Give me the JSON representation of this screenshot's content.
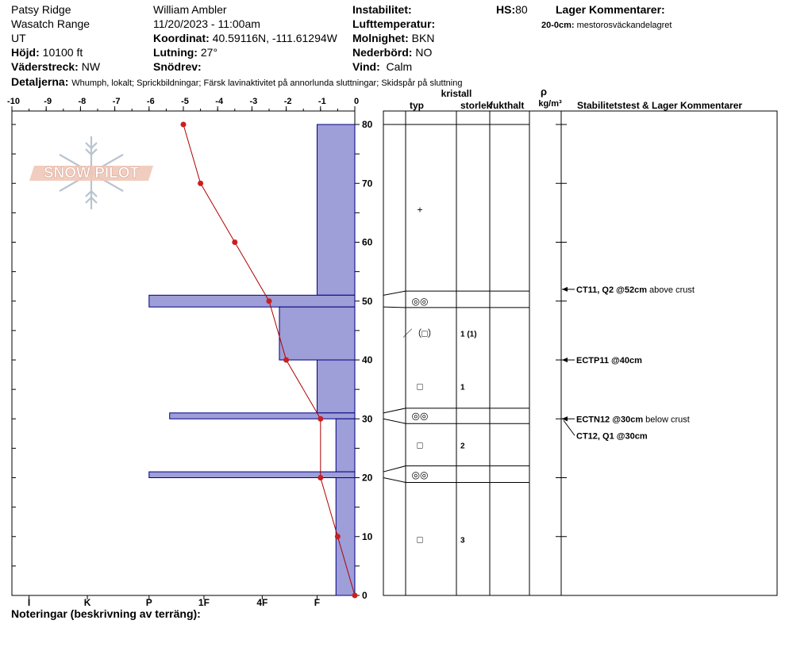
{
  "header": {
    "location": "Patsy Ridge",
    "range": "Wasatch Range",
    "state": "UT",
    "elevation_label": "Höjd:",
    "elevation": "10100 ft",
    "aspect_label": "Väderstreck:",
    "aspect": "NW",
    "observer": "William Ambler",
    "datetime": "11/20/2023 - 11:00am",
    "coord_label": "Koordinat:",
    "coord": "40.59116N, -111.61294W",
    "slope_label": "Lutning:",
    "slope": "27°",
    "snowdrift_label": "Snödrev:",
    "snowdrift": "",
    "instability_label": "Instabilitet:",
    "instability": "",
    "airtemp_label": "Lufttemperatur:",
    "airtemp": "",
    "sky_label": "Molnighet:",
    "sky": "BKN",
    "precip_label": "Nederbörd:",
    "precip": "NO",
    "wind_label": "Vind:",
    "wind": "Calm",
    "hs_label": "HS:",
    "hs": "80",
    "layer_comments_label": "Lager Kommentarer:",
    "layer_comment_depth": "20-0cm:",
    "layer_comment_text": "mestorosväckandelagret",
    "details_label": "Detaljerna:",
    "details": "Whumph, lokalt;  Sprickbildningar;  Färsk lavinaktivitet på annorlunda sluttningar;  Skidspår på sluttning"
  },
  "logo": {
    "text": "SNOW PILOT"
  },
  "columns": {
    "typ": "typ",
    "kristall": "kristall",
    "storlek": "storlek",
    "fukthalt": "fukthalt",
    "rho": "ρ",
    "density_unit": "kg/m³",
    "stability": "Stabilitetstest & Lager Kommentarer"
  },
  "notes_label": "Noteringar (beskrivning av terräng):",
  "colors": {
    "hardness_fill": "#9e9ed8",
    "hardness_stroke": "#000080",
    "temp_line": "#b00000",
    "temp_point": "#c82020"
  },
  "chart_data": {
    "type": "snow_profile",
    "temperature_axis": {
      "min": -10,
      "max": 0,
      "ticks": [
        -10,
        -9,
        -8,
        -7,
        -6,
        -5,
        -4,
        -3,
        -2,
        -1,
        0
      ]
    },
    "depth_axis": {
      "min": 0,
      "max": 80,
      "ticks": [
        0,
        10,
        20,
        30,
        40,
        50,
        60,
        70,
        80
      ]
    },
    "hardness_axis": {
      "labels": [
        "I",
        "K",
        "P",
        "1F",
        "4F",
        "F"
      ],
      "values": [
        -9.5,
        -7.8,
        -6,
        -4.4,
        -2.7,
        -1.1
      ]
    },
    "temperature_profile": [
      {
        "depth": 80,
        "temp": -5.0
      },
      {
        "depth": 70,
        "temp": -4.5
      },
      {
        "depth": 60,
        "temp": -3.5
      },
      {
        "depth": 50,
        "temp": -2.5
      },
      {
        "depth": 40,
        "temp": -2.0
      },
      {
        "depth": 30,
        "temp": -1.0
      },
      {
        "depth": 20,
        "temp": -1.0
      },
      {
        "depth": 10,
        "temp": -0.5
      },
      {
        "depth": 0,
        "temp": 0.0
      }
    ],
    "hardness_layers": [
      {
        "top": 80,
        "bottom": 51,
        "temp_extent": -1.1
      },
      {
        "top": 51,
        "bottom": 49,
        "temp_extent": -6.0
      },
      {
        "top": 49,
        "bottom": 40,
        "temp_extent": -2.2
      },
      {
        "top": 40,
        "bottom": 31,
        "temp_extent": -1.1
      },
      {
        "top": 31,
        "bottom": 30,
        "temp_extent": -5.4
      },
      {
        "top": 30,
        "bottom": 21,
        "temp_extent": -0.55
      },
      {
        "top": 21,
        "bottom": 20,
        "temp_extent": -6.0
      },
      {
        "top": 20,
        "bottom": 0,
        "temp_extent": -0.55
      }
    ],
    "layer_boundaries": [
      {
        "depth": 80,
        "right_depth": 80
      },
      {
        "depth": 51,
        "right_depth": 51.7
      },
      {
        "depth": 49,
        "right_depth": 48.9
      },
      {
        "depth": 31,
        "right_depth": 31.8
      },
      {
        "depth": 30,
        "right_depth": 29.2
      },
      {
        "depth": 21,
        "right_depth": 22
      },
      {
        "depth": 20,
        "right_depth": 19.2
      }
    ],
    "crystals": [
      {
        "depth": 65.5,
        "symbol": "+",
        "size": ""
      },
      {
        "depth": 50.0,
        "symbol": "◎◎",
        "size": ""
      },
      {
        "depth": 44.5,
        "symbol": "／（□）",
        "size": "1 (1)"
      },
      {
        "depth": 35.5,
        "symbol": "□",
        "size": "1"
      },
      {
        "depth": 30.5,
        "symbol": "◎◎",
        "size": ""
      },
      {
        "depth": 25.5,
        "symbol": "□",
        "size": "2"
      },
      {
        "depth": 20.5,
        "symbol": "◎◎",
        "size": ""
      },
      {
        "depth": 9.5,
        "symbol": "□",
        "size": "3"
      }
    ],
    "stability_tests": [
      {
        "depth": 52,
        "label": "CT11, Q2 @52cm",
        "comment": "above crust"
      },
      {
        "depth": 40,
        "label": "ECTP11 @40cm",
        "comment": ""
      },
      {
        "depth": 30,
        "label": "ECTN12 @30cm",
        "comment": "below crust"
      },
      {
        "depth": 30,
        "label": "CT12, Q1 @30cm",
        "comment": ""
      }
    ]
  }
}
